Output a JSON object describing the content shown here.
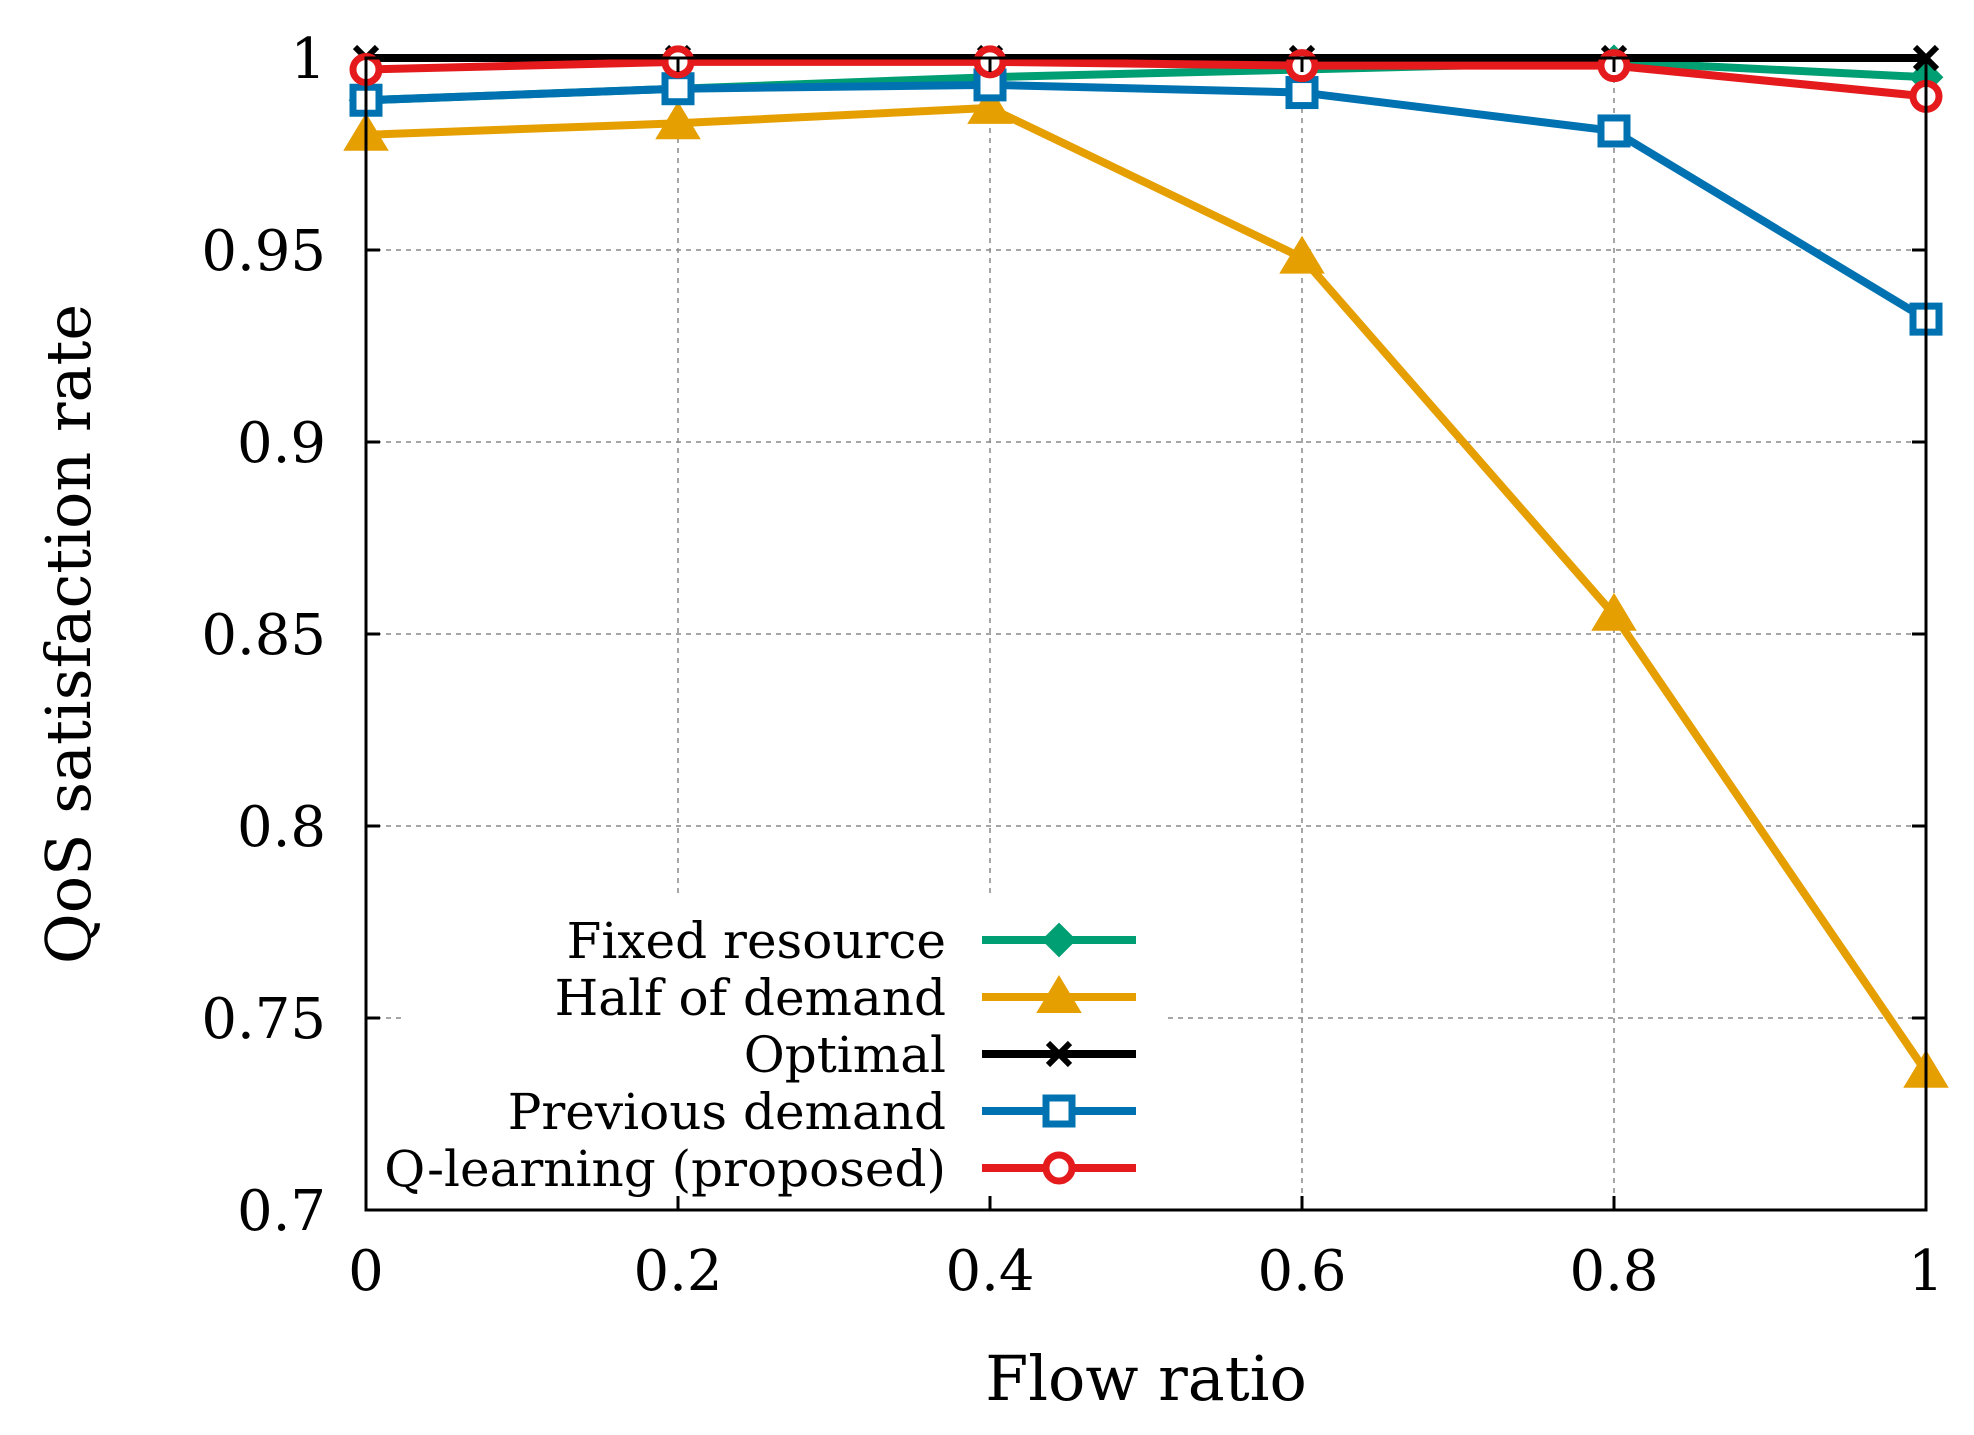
{
  "chart_data": {
    "type": "line",
    "title": "",
    "xlabel": "Flow ratio",
    "ylabel": "QoS satisfaction rate",
    "x": [
      0,
      0.2,
      0.4,
      0.6,
      0.8,
      1
    ],
    "xlim": [
      0,
      1
    ],
    "ylim": [
      0.7,
      1
    ],
    "xticks": [
      0,
      0.2,
      0.4,
      0.6,
      0.8,
      1
    ],
    "yticks": [
      0.7,
      0.75,
      0.8,
      0.85,
      0.9,
      0.95,
      1
    ],
    "xtick_labels": [
      "0",
      "0.2",
      "0.4",
      "0.6",
      "0.8",
      "1"
    ],
    "ytick_labels": [
      "0.7",
      "0.75",
      "0.8",
      "0.85",
      "0.9",
      "0.95",
      "1"
    ],
    "grid": true,
    "legend_position": "bottom-center",
    "series": [
      {
        "name": "Fixed resource",
        "color": "#009e73",
        "marker": "diamond-filled",
        "values": [
          0.989,
          0.992,
          0.995,
          0.997,
          0.999,
          0.995
        ]
      },
      {
        "name": "Half of demand",
        "color": "#e69f00",
        "marker": "triangle-filled",
        "values": [
          0.98,
          0.983,
          0.987,
          0.948,
          0.855,
          0.736
        ]
      },
      {
        "name": "Optimal",
        "color": "#000000",
        "marker": "cross",
        "values": [
          1.0,
          1.0,
          1.0,
          1.0,
          1.0,
          1.0
        ]
      },
      {
        "name": "Previous demand",
        "color": "#0072b2",
        "marker": "square-open",
        "values": [
          0.989,
          0.992,
          0.993,
          0.991,
          0.981,
          0.932
        ]
      },
      {
        "name": "Q-learning (proposed)",
        "color": "#e41a1c",
        "marker": "circle-open",
        "values": [
          0.997,
          0.999,
          0.999,
          0.998,
          0.998,
          0.99
        ]
      }
    ]
  }
}
